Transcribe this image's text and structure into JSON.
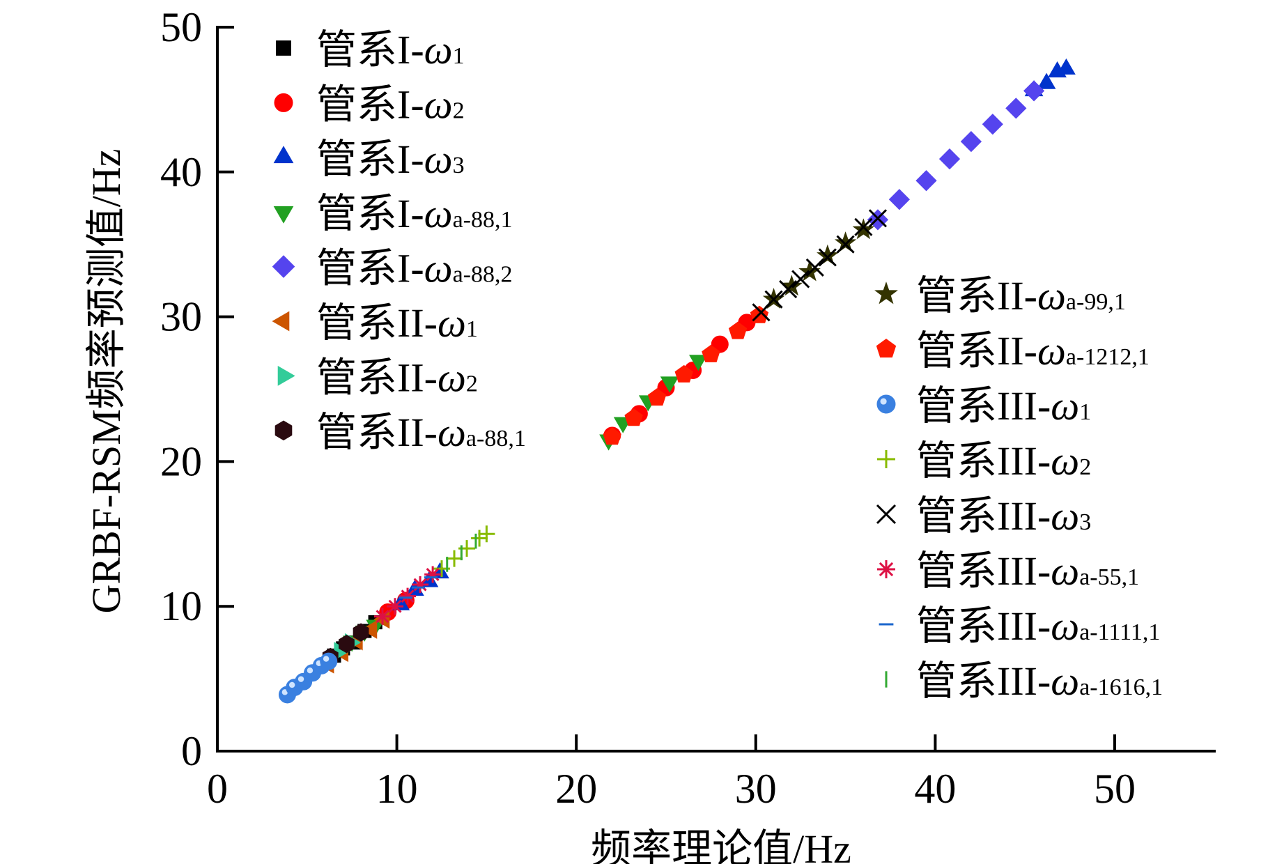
{
  "chart_data": {
    "type": "scatter",
    "xlabel": "频率理论值/Hz",
    "ylabel": "GRBF-RSM频率预测值/Hz",
    "xlim": [
      0,
      55
    ],
    "ylim": [
      0,
      50
    ],
    "xticks": [
      "0",
      "10",
      "20",
      "30",
      "40",
      "50"
    ],
    "yticks": [
      "0",
      "10",
      "20",
      "30",
      "40",
      "50"
    ],
    "grid": false,
    "legend_placement": [
      "top-left",
      "center-right"
    ],
    "series": [
      {
        "prefix": "管系I-",
        "symbol": "ω",
        "sub": "1",
        "marker": "square",
        "color": "#000000",
        "legend": 0,
        "points": [
          [
            6.5,
            6.6
          ],
          [
            7,
            7.1
          ],
          [
            7.6,
            7.5
          ],
          [
            8.2,
            8.3
          ],
          [
            8.8,
            8.9
          ]
        ]
      },
      {
        "prefix": "管系I-",
        "symbol": "ω",
        "sub": "2",
        "marker": "circle",
        "color": "#ff0000",
        "legend": 0,
        "points": [
          [
            22,
            21.8
          ],
          [
            23.5,
            23.3
          ],
          [
            25,
            25.1
          ],
          [
            26.5,
            26.3
          ],
          [
            28,
            28.1
          ],
          [
            29.5,
            29.6
          ],
          [
            9.5,
            9.6
          ],
          [
            10.5,
            10.4
          ]
        ]
      },
      {
        "prefix": "管系I-",
        "symbol": "ω",
        "sub": "3",
        "marker": "triangle-up",
        "color": "#0033cc",
        "legend": 0,
        "points": [
          [
            10.2,
            10.1
          ],
          [
            11,
            11.1
          ],
          [
            11.8,
            11.7
          ],
          [
            12.4,
            12.3
          ],
          [
            45.5,
            45.6
          ],
          [
            46.2,
            46.1
          ],
          [
            46.8,
            46.9
          ],
          [
            47.3,
            47.1
          ]
        ]
      },
      {
        "prefix": "管系I-",
        "symbol": "ω",
        "sub": "a-88,1",
        "marker": "triangle-down",
        "color": "#22a022",
        "legend": 0,
        "points": [
          [
            21.8,
            21.5
          ],
          [
            22.6,
            22.7
          ],
          [
            24,
            24.2
          ],
          [
            25.2,
            25.5
          ],
          [
            26.8,
            27
          ],
          [
            7.5,
            7.6
          ],
          [
            8.2,
            8.3
          ],
          [
            8.8,
            8.7
          ]
        ]
      },
      {
        "prefix": "管系I-",
        "symbol": "ω",
        "sub": "a-88,2",
        "marker": "diamond",
        "color": "#5544ee",
        "legend": 0,
        "points": [
          [
            36.8,
            36.7
          ],
          [
            38,
            38.1
          ],
          [
            39.5,
            39.4
          ],
          [
            40.8,
            40.9
          ],
          [
            42,
            42.1
          ],
          [
            43.2,
            43.3
          ],
          [
            44.5,
            44.4
          ],
          [
            45.5,
            45.6
          ]
        ]
      },
      {
        "prefix": "管系II-",
        "symbol": "ω",
        "sub": "1",
        "marker": "triangle-left",
        "color": "#cc5500",
        "legend": 0,
        "points": [
          [
            6.2,
            6
          ],
          [
            7,
            6.8
          ],
          [
            7.8,
            7.6
          ],
          [
            8.6,
            8.4
          ],
          [
            9.3,
            9.1
          ]
        ]
      },
      {
        "prefix": "管系II-",
        "symbol": "ω",
        "sub": "2",
        "marker": "triangle-right",
        "color": "#33cc99",
        "legend": 0,
        "points": [
          [
            6.8,
            6.9
          ],
          [
            7.4,
            7.5
          ]
        ]
      },
      {
        "prefix": "管系II-",
        "symbol": "ω",
        "sub": "a-88,1",
        "marker": "hexagon",
        "color": "#2a0a10",
        "legend": 0,
        "points": [
          [
            6.3,
            6.5
          ],
          [
            7.2,
            7.4
          ],
          [
            8,
            8.2
          ]
        ]
      },
      {
        "prefix": "管系II-",
        "symbol": "ω",
        "sub": "a-99,1",
        "marker": "star",
        "color": "#333300",
        "legend": 1,
        "points": [
          [
            31,
            31.2
          ],
          [
            32,
            32.1
          ],
          [
            33,
            33.1
          ],
          [
            34,
            34.2
          ],
          [
            35,
            35.1
          ],
          [
            36,
            36
          ]
        ]
      },
      {
        "prefix": "管系II-",
        "symbol": "ω",
        "sub": "a-1212,1",
        "marker": "pentagon",
        "color": "#ff1a00",
        "legend": 1,
        "points": [
          [
            22,
            21.7
          ],
          [
            23.2,
            23
          ],
          [
            24.5,
            24.4
          ],
          [
            26,
            26
          ],
          [
            27.5,
            27.4
          ],
          [
            29,
            29
          ],
          [
            30.2,
            30.1
          ]
        ]
      },
      {
        "prefix": "管系III-",
        "symbol": "ω",
        "sub": "1",
        "marker": "sphere",
        "color": "#3a80e0",
        "legend": 1,
        "points": [
          [
            3.9,
            3.9
          ],
          [
            4.3,
            4.4
          ],
          [
            4.8,
            4.8
          ],
          [
            5.3,
            5.4
          ],
          [
            5.8,
            5.9
          ],
          [
            6.2,
            6.2
          ]
        ]
      },
      {
        "prefix": "管系III-",
        "symbol": "ω",
        "sub": "2",
        "marker": "plus",
        "color": "#88bb00",
        "legend": 1,
        "points": [
          [
            12.5,
            12.6
          ],
          [
            13.2,
            13.3
          ],
          [
            13.9,
            14
          ],
          [
            14.6,
            14.7
          ],
          [
            15,
            15
          ]
        ]
      },
      {
        "prefix": "管系III-",
        "symbol": "ω",
        "sub": "3",
        "marker": "cross",
        "color": "#000000",
        "legend": 1,
        "points": [
          [
            30.3,
            30.3
          ],
          [
            31,
            31.2
          ],
          [
            31.8,
            31.9
          ],
          [
            32.5,
            32.6
          ],
          [
            33.3,
            33.4
          ],
          [
            34,
            34.1
          ],
          [
            35,
            35
          ],
          [
            36,
            36.2
          ],
          [
            36.8,
            36.8
          ]
        ]
      },
      {
        "prefix": "管系III-",
        "symbol": "ω",
        "sub": "a-55,1",
        "marker": "asterisk",
        "color": "#dd1144",
        "legend": 1,
        "points": [
          [
            9.2,
            9.3
          ],
          [
            9.9,
            10
          ],
          [
            10.6,
            10.7
          ],
          [
            11.3,
            11.5
          ],
          [
            12,
            12.2
          ]
        ]
      },
      {
        "prefix": "管系III-",
        "symbol": "ω",
        "sub": "a-1111,1",
        "marker": "hline",
        "color": "#1a66cc",
        "legend": 1,
        "points": [
          [
            10.5,
            10.6
          ],
          [
            11.2,
            11.3
          ],
          [
            11.9,
            12
          ]
        ]
      },
      {
        "prefix": "管系III-",
        "symbol": "ω",
        "sub": "a-1616,1",
        "marker": "vline",
        "color": "#33aa33",
        "legend": 1,
        "points": [
          [
            12.8,
            12.9
          ],
          [
            13.6,
            13.7
          ],
          [
            14.4,
            14.5
          ]
        ]
      }
    ]
  }
}
